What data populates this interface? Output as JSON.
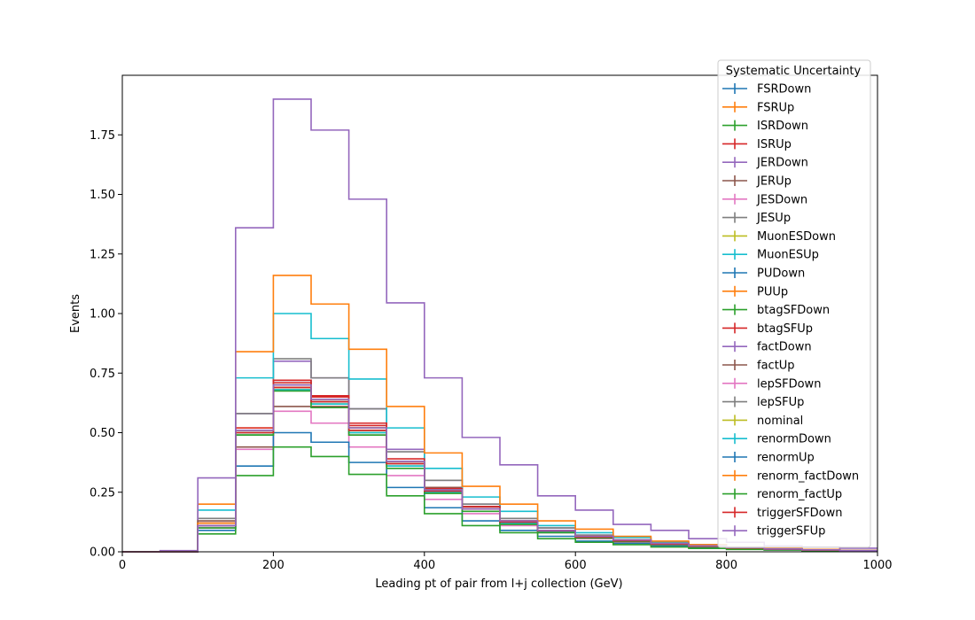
{
  "chart_data": {
    "type": "line",
    "title": "",
    "xlabel": "Leading pt of pair from l+j collection (GeV)",
    "ylabel": "Events",
    "xlim": [
      0,
      1000
    ],
    "ylim": [
      0,
      2.0
    ],
    "x_ticks": [
      0,
      200,
      400,
      600,
      800,
      1000
    ],
    "y_ticks": [
      0.0,
      0.25,
      0.5,
      0.75,
      1.0,
      1.25,
      1.5,
      1.75
    ],
    "x_tick_labels": [
      "0",
      "200",
      "400",
      "600",
      "800",
      "1000"
    ],
    "y_tick_labels": [
      "0.00",
      "0.25",
      "0.50",
      "0.75",
      "1.00",
      "1.25",
      "1.50",
      "1.75"
    ],
    "bin_edges": [
      0,
      50,
      100,
      150,
      200,
      250,
      300,
      350,
      400,
      450,
      500,
      550,
      600,
      650,
      700,
      750,
      800,
      850,
      900,
      950,
      1000
    ],
    "grid": false,
    "legend": {
      "title": "Systematic Uncertainty",
      "position": "top-right"
    },
    "series": [
      {
        "name": "FSRDown",
        "color": "#1f77b4",
        "values": [
          0,
          0,
          0.1,
          0.5,
          0.72,
          0.65,
          0.52,
          0.37,
          0.26,
          0.19,
          0.13,
          0.09,
          0.065,
          0.05,
          0.035,
          0.025,
          0.018,
          0.012,
          0.008,
          0.005
        ]
      },
      {
        "name": "FSRUp",
        "color": "#ff7f0e",
        "values": [
          0,
          0,
          0.12,
          0.52,
          0.7,
          0.64,
          0.51,
          0.37,
          0.26,
          0.18,
          0.13,
          0.09,
          0.065,
          0.05,
          0.035,
          0.025,
          0.018,
          0.012,
          0.008,
          0.005
        ]
      },
      {
        "name": "ISRDown",
        "color": "#2ca02c",
        "values": [
          0,
          0,
          0.11,
          0.49,
          0.68,
          0.62,
          0.5,
          0.36,
          0.25,
          0.18,
          0.12,
          0.085,
          0.06,
          0.045,
          0.03,
          0.022,
          0.015,
          0.01,
          0.007,
          0.004
        ]
      },
      {
        "name": "ISRUp",
        "color": "#d62728",
        "values": [
          0,
          0,
          0.12,
          0.51,
          0.71,
          0.65,
          0.53,
          0.38,
          0.27,
          0.19,
          0.13,
          0.09,
          0.065,
          0.05,
          0.035,
          0.025,
          0.018,
          0.012,
          0.008,
          0.005
        ]
      },
      {
        "name": "JERDown",
        "color": "#9467bd",
        "values": [
          0,
          0,
          0.12,
          0.58,
          0.8,
          0.73,
          0.6,
          0.43,
          0.3,
          0.2,
          0.14,
          0.1,
          0.07,
          0.05,
          0.035,
          0.025,
          0.018,
          0.012,
          0.008,
          0.005
        ]
      },
      {
        "name": "JERUp",
        "color": "#8c564b",
        "values": [
          0,
          0,
          0.12,
          0.44,
          0.61,
          0.61,
          0.49,
          0.38,
          0.27,
          0.19,
          0.13,
          0.09,
          0.065,
          0.05,
          0.035,
          0.025,
          0.018,
          0.012,
          0.008,
          0.005
        ]
      },
      {
        "name": "JESDown",
        "color": "#e377c2",
        "values": [
          0,
          0,
          0.1,
          0.43,
          0.59,
          0.54,
          0.44,
          0.32,
          0.22,
          0.16,
          0.11,
          0.08,
          0.055,
          0.04,
          0.03,
          0.02,
          0.014,
          0.01,
          0.006,
          0.004
        ]
      },
      {
        "name": "JESUp",
        "color": "#7f7f7f",
        "values": [
          0,
          0,
          0.14,
          0.58,
          0.81,
          0.73,
          0.6,
          0.42,
          0.3,
          0.2,
          0.14,
          0.1,
          0.07,
          0.05,
          0.035,
          0.025,
          0.018,
          0.012,
          0.008,
          0.005
        ]
      },
      {
        "name": "MuonESDown",
        "color": "#bcbd22",
        "values": [
          0,
          0,
          0.11,
          0.49,
          0.69,
          0.62,
          0.51,
          0.37,
          0.25,
          0.18,
          0.12,
          0.085,
          0.06,
          0.045,
          0.03,
          0.022,
          0.015,
          0.01,
          0.007,
          0.004
        ]
      },
      {
        "name": "MuonESUp",
        "color": "#17becf",
        "values": [
          0,
          0,
          0.175,
          0.73,
          1.0,
          0.895,
          0.725,
          0.52,
          0.35,
          0.23,
          0.17,
          0.11,
          0.08,
          0.06,
          0.04,
          0.03,
          0.02,
          0.014,
          0.009,
          0.006
        ]
      },
      {
        "name": "PUDown",
        "color": "#1f77b4",
        "values": [
          0,
          0,
          0.09,
          0.36,
          0.5,
          0.46,
          0.375,
          0.27,
          0.185,
          0.13,
          0.09,
          0.065,
          0.045,
          0.035,
          0.025,
          0.018,
          0.012,
          0.008,
          0.006,
          0.004
        ]
      },
      {
        "name": "PUUp",
        "color": "#ff7f0e",
        "values": [
          0,
          0,
          0.2,
          0.84,
          1.16,
          1.04,
          0.85,
          0.61,
          0.415,
          0.275,
          0.2,
          0.13,
          0.095,
          0.065,
          0.045,
          0.03,
          0.02,
          0.015,
          0.01,
          0.006
        ]
      },
      {
        "name": "btagSFDown",
        "color": "#2ca02c",
        "values": [
          0,
          0,
          0.075,
          0.32,
          0.44,
          0.4,
          0.325,
          0.235,
          0.16,
          0.11,
          0.08,
          0.055,
          0.04,
          0.03,
          0.02,
          0.014,
          0.01,
          0.007,
          0.005,
          0.003
        ]
      },
      {
        "name": "btagSFUp",
        "color": "#d62728",
        "values": [
          0,
          0,
          0.12,
          0.52,
          0.72,
          0.655,
          0.54,
          0.39,
          0.265,
          0.19,
          0.13,
          0.09,
          0.065,
          0.05,
          0.035,
          0.025,
          0.018,
          0.012,
          0.008,
          0.005
        ]
      },
      {
        "name": "factDown",
        "color": "#9467bd",
        "values": [
          0,
          0.005,
          0.31,
          1.36,
          1.9,
          1.77,
          1.48,
          1.045,
          0.73,
          0.48,
          0.365,
          0.235,
          0.175,
          0.115,
          0.09,
          0.055,
          0.04,
          0.025,
          0.02,
          0.015
        ]
      },
      {
        "name": "factUp",
        "color": "#8c564b",
        "values": [
          0,
          0,
          0.13,
          0.5,
          0.69,
          0.63,
          0.52,
          0.37,
          0.26,
          0.18,
          0.12,
          0.085,
          0.06,
          0.045,
          0.03,
          0.022,
          0.015,
          0.01,
          0.007,
          0.004
        ]
      },
      {
        "name": "lepSFDown",
        "color": "#e377c2",
        "values": [
          0,
          0,
          0.11,
          0.5,
          0.69,
          0.63,
          0.51,
          0.37,
          0.25,
          0.18,
          0.12,
          0.085,
          0.06,
          0.045,
          0.03,
          0.022,
          0.015,
          0.01,
          0.007,
          0.004
        ]
      },
      {
        "name": "lepSFUp",
        "color": "#7f7f7f",
        "values": [
          0,
          0,
          0.12,
          0.51,
          0.7,
          0.64,
          0.52,
          0.38,
          0.26,
          0.18,
          0.13,
          0.09,
          0.065,
          0.05,
          0.035,
          0.025,
          0.018,
          0.012,
          0.008,
          0.005
        ]
      },
      {
        "name": "nominal",
        "color": "#bcbd22",
        "values": [
          0,
          0,
          0.11,
          0.5,
          0.69,
          0.63,
          0.51,
          0.37,
          0.255,
          0.18,
          0.125,
          0.088,
          0.062,
          0.046,
          0.032,
          0.023,
          0.016,
          0.011,
          0.007,
          0.004
        ]
      },
      {
        "name": "renormDown",
        "color": "#17becf",
        "values": [
          0,
          0,
          0.11,
          0.49,
          0.68,
          0.62,
          0.5,
          0.36,
          0.25,
          0.18,
          0.12,
          0.085,
          0.06,
          0.045,
          0.03,
          0.022,
          0.015,
          0.01,
          0.007,
          0.004
        ]
      },
      {
        "name": "renormUp",
        "color": "#1f77b4",
        "values": [
          0,
          0,
          0.11,
          0.5,
          0.7,
          0.63,
          0.51,
          0.37,
          0.26,
          0.18,
          0.125,
          0.088,
          0.062,
          0.046,
          0.032,
          0.023,
          0.016,
          0.011,
          0.007,
          0.004
        ]
      },
      {
        "name": "renorm_factDown",
        "color": "#ff7f0e",
        "values": [
          0,
          0,
          0.12,
          0.51,
          0.7,
          0.64,
          0.52,
          0.38,
          0.26,
          0.18,
          0.13,
          0.09,
          0.065,
          0.05,
          0.035,
          0.025,
          0.018,
          0.012,
          0.008,
          0.005
        ]
      },
      {
        "name": "renorm_factUp",
        "color": "#2ca02c",
        "values": [
          0,
          0,
          0.1,
          0.49,
          0.675,
          0.605,
          0.49,
          0.35,
          0.245,
          0.17,
          0.115,
          0.08,
          0.058,
          0.043,
          0.03,
          0.021,
          0.014,
          0.009,
          0.006,
          0.004
        ]
      },
      {
        "name": "triggerSFDown",
        "color": "#d62728",
        "values": [
          0,
          0,
          0.11,
          0.5,
          0.69,
          0.63,
          0.51,
          0.37,
          0.255,
          0.18,
          0.125,
          0.088,
          0.062,
          0.046,
          0.032,
          0.023,
          0.016,
          0.011,
          0.007,
          0.004
        ]
      },
      {
        "name": "triggerSFUp",
        "color": "#9467bd",
        "values": [
          0,
          0,
          0.11,
          0.51,
          0.7,
          0.64,
          0.52,
          0.38,
          0.26,
          0.18,
          0.13,
          0.09,
          0.065,
          0.05,
          0.035,
          0.025,
          0.018,
          0.012,
          0.008,
          0.005
        ]
      }
    ]
  }
}
